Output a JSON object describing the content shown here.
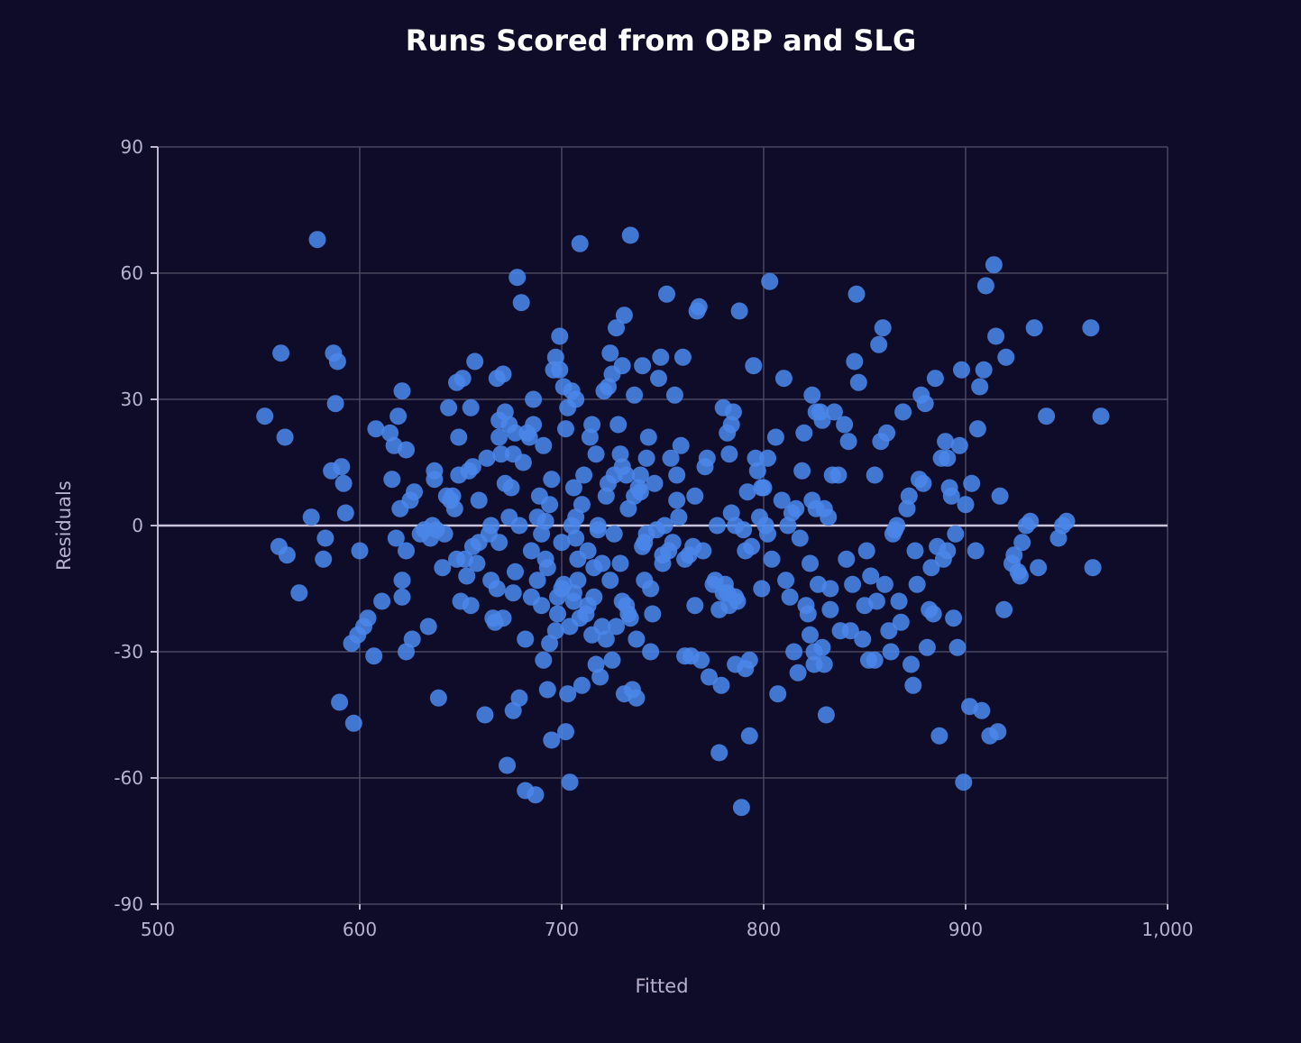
{
  "chart_data": {
    "type": "scatter",
    "title": "Runs Scored from OBP and SLG",
    "xlabel": "Fitted",
    "ylabel": "Residuals",
    "xlim": [
      500,
      1000
    ],
    "ylim": [
      -90,
      90
    ],
    "x_ticks": [
      500,
      600,
      700,
      800,
      900,
      1000
    ],
    "x_tick_labels": [
      "500",
      "600",
      "700",
      "800",
      "900",
      "1,000"
    ],
    "y_ticks": [
      -90,
      -60,
      -30,
      0,
      30,
      60,
      90
    ],
    "y_tick_labels": [
      "-90",
      "-60",
      "-30",
      "0",
      "30",
      "60",
      "90"
    ],
    "grid": true,
    "marker_color": "#4a86e8",
    "points": [
      [
        553,
        26
      ],
      [
        560,
        -5
      ],
      [
        561,
        41
      ],
      [
        563,
        21
      ],
      [
        564,
        -7
      ],
      [
        570,
        -16
      ],
      [
        576,
        2
      ],
      [
        579,
        68
      ],
      [
        582,
        -8
      ],
      [
        583,
        -3
      ],
      [
        586,
        13
      ],
      [
        587,
        41
      ],
      [
        588,
        29
      ],
      [
        589,
        39
      ],
      [
        590,
        -42
      ],
      [
        591,
        14
      ],
      [
        592,
        10
      ],
      [
        593,
        3
      ],
      [
        596,
        -28
      ],
      [
        597,
        -47
      ],
      [
        599,
        -26
      ],
      [
        600,
        -6
      ],
      [
        602,
        -24
      ],
      [
        604,
        -22
      ],
      [
        607,
        -31
      ],
      [
        608,
        23
      ],
      [
        611,
        -18
      ],
      [
        615,
        22
      ],
      [
        616,
        11
      ],
      [
        617,
        19
      ],
      [
        618,
        -3
      ],
      [
        619,
        26
      ],
      [
        620,
        4
      ],
      [
        621,
        32
      ],
      [
        621,
        -13
      ],
      [
        621,
        -17
      ],
      [
        623,
        18
      ],
      [
        623,
        -6
      ],
      [
        623,
        -30
      ],
      [
        625,
        6
      ],
      [
        626,
        -27
      ],
      [
        627,
        8
      ],
      [
        630,
        -2
      ],
      [
        632,
        -1
      ],
      [
        634,
        -24
      ],
      [
        635,
        -3
      ],
      [
        636,
        0
      ],
      [
        637,
        11
      ],
      [
        637,
        13
      ],
      [
        638,
        -1
      ],
      [
        639,
        -41
      ],
      [
        641,
        -10
      ],
      [
        642,
        -2
      ],
      [
        643,
        7
      ],
      [
        644,
        28
      ],
      [
        645,
        6
      ],
      [
        646,
        7
      ],
      [
        647,
        4
      ],
      [
        648,
        -8
      ],
      [
        648,
        34
      ],
      [
        649,
        12
      ],
      [
        649,
        21
      ],
      [
        650,
        -18
      ],
      [
        651,
        35
      ],
      [
        652,
        -8
      ],
      [
        653,
        -12
      ],
      [
        654,
        13
      ],
      [
        655,
        28
      ],
      [
        655,
        -19
      ],
      [
        656,
        14
      ],
      [
        656,
        -5
      ],
      [
        657,
        39
      ],
      [
        658,
        -9
      ],
      [
        659,
        -4
      ],
      [
        659,
        6
      ],
      [
        662,
        -45
      ],
      [
        663,
        16
      ],
      [
        664,
        -2
      ],
      [
        665,
        0
      ],
      [
        665,
        -13
      ],
      [
        666,
        -22
      ],
      [
        667,
        -23
      ],
      [
        668,
        -15
      ],
      [
        668,
        35
      ],
      [
        669,
        25
      ],
      [
        669,
        21
      ],
      [
        669,
        -4
      ],
      [
        670,
        17
      ],
      [
        671,
        36
      ],
      [
        671,
        -22
      ],
      [
        672,
        10
      ],
      [
        672,
        27
      ],
      [
        673,
        -57
      ],
      [
        674,
        2
      ],
      [
        674,
        24
      ],
      [
        675,
        9
      ],
      [
        676,
        -16
      ],
      [
        676,
        -44
      ],
      [
        676,
        17
      ],
      [
        677,
        -11
      ],
      [
        677,
        22
      ],
      [
        678,
        59
      ],
      [
        679,
        0
      ],
      [
        679,
        -41
      ],
      [
        680,
        53
      ],
      [
        681,
        15
      ],
      [
        682,
        -63
      ],
      [
        682,
        -27
      ],
      [
        683,
        22
      ],
      [
        684,
        21
      ],
      [
        685,
        -6
      ],
      [
        685,
        -17
      ],
      [
        686,
        24
      ],
      [
        686,
        30
      ],
      [
        687,
        -64
      ],
      [
        688,
        2
      ],
      [
        688,
        -13
      ],
      [
        689,
        7
      ],
      [
        690,
        -19
      ],
      [
        690,
        -2
      ],
      [
        691,
        -32
      ],
      [
        691,
        19
      ],
      [
        692,
        -8
      ],
      [
        692,
        1
      ],
      [
        693,
        -39
      ],
      [
        693,
        -10
      ],
      [
        694,
        5
      ],
      [
        694,
        -28
      ],
      [
        695,
        -51
      ],
      [
        695,
        11
      ],
      [
        696,
        37
      ],
      [
        697,
        -25
      ],
      [
        697,
        40
      ],
      [
        698,
        -21
      ],
      [
        698,
        -17
      ],
      [
        699,
        37
      ],
      [
        699,
        45
      ],
      [
        700,
        -15
      ],
      [
        700,
        -4
      ],
      [
        701,
        -14
      ],
      [
        701,
        33
      ],
      [
        702,
        -49
      ],
      [
        702,
        23
      ],
      [
        703,
        -40
      ],
      [
        703,
        28
      ],
      [
        704,
        -24
      ],
      [
        704,
        -61
      ],
      [
        705,
        0
      ],
      [
        705,
        32
      ],
      [
        706,
        9
      ],
      [
        706,
        -18
      ],
      [
        706,
        -16
      ],
      [
        707,
        2
      ],
      [
        707,
        -3
      ],
      [
        707,
        30
      ],
      [
        708,
        -13
      ],
      [
        708,
        -8
      ],
      [
        709,
        67
      ],
      [
        709,
        -22
      ],
      [
        710,
        -38
      ],
      [
        710,
        5
      ],
      [
        711,
        12
      ],
      [
        712,
        -21
      ],
      [
        713,
        -6
      ],
      [
        713,
        -19
      ],
      [
        714,
        21
      ],
      [
        715,
        24
      ],
      [
        715,
        -26
      ],
      [
        716,
        -10
      ],
      [
        716,
        -17
      ],
      [
        717,
        17
      ],
      [
        717,
        -33
      ],
      [
        718,
        0
      ],
      [
        718,
        -1
      ],
      [
        719,
        -36
      ],
      [
        720,
        -9
      ],
      [
        720,
        -24
      ],
      [
        721,
        32
      ],
      [
        722,
        -27
      ],
      [
        722,
        7
      ],
      [
        723,
        33
      ],
      [
        723,
        10
      ],
      [
        724,
        41
      ],
      [
        724,
        -13
      ],
      [
        725,
        -32
      ],
      [
        725,
        36
      ],
      [
        726,
        -2
      ],
      [
        726,
        12
      ],
      [
        727,
        -24
      ],
      [
        727,
        47
      ],
      [
        728,
        24
      ],
      [
        729,
        17
      ],
      [
        729,
        -9
      ],
      [
        730,
        -18
      ],
      [
        730,
        38
      ],
      [
        730,
        14
      ],
      [
        731,
        50
      ],
      [
        731,
        -40
      ],
      [
        732,
        -19
      ],
      [
        732,
        12
      ],
      [
        733,
        4
      ],
      [
        733,
        -21
      ],
      [
        734,
        69
      ],
      [
        734,
        -22
      ],
      [
        735,
        -39
      ],
      [
        736,
        7
      ],
      [
        736,
        31
      ],
      [
        737,
        -27
      ],
      [
        737,
        -41
      ],
      [
        738,
        9
      ],
      [
        739,
        12
      ],
      [
        739,
        8
      ],
      [
        740,
        38
      ],
      [
        740,
        -5
      ],
      [
        741,
        -4
      ],
      [
        741,
        -13
      ],
      [
        742,
        16
      ],
      [
        742,
        -2
      ],
      [
        743,
        21
      ],
      [
        744,
        -30
      ],
      [
        744,
        -15
      ],
      [
        745,
        -21
      ],
      [
        746,
        10
      ],
      [
        747,
        -1
      ],
      [
        748,
        35
      ],
      [
        749,
        40
      ],
      [
        750,
        -9
      ],
      [
        750,
        -7
      ],
      [
        751,
        0
      ],
      [
        752,
        55
      ],
      [
        753,
        -6
      ],
      [
        754,
        16
      ],
      [
        755,
        -4
      ],
      [
        756,
        31
      ],
      [
        757,
        12
      ],
      [
        757,
        6
      ],
      [
        758,
        2
      ],
      [
        759,
        19
      ],
      [
        760,
        40
      ],
      [
        761,
        -31
      ],
      [
        761,
        -8
      ],
      [
        763,
        -7
      ],
      [
        764,
        -31
      ],
      [
        765,
        -5
      ],
      [
        766,
        -19
      ],
      [
        766,
        7
      ],
      [
        767,
        51
      ],
      [
        768,
        52
      ],
      [
        769,
        -32
      ],
      [
        770,
        -6
      ],
      [
        771,
        14
      ],
      [
        772,
        16
      ],
      [
        773,
        -36
      ],
      [
        775,
        -14
      ],
      [
        776,
        -13
      ],
      [
        777,
        0
      ],
      [
        778,
        -54
      ],
      [
        778,
        -20
      ],
      [
        779,
        -38
      ],
      [
        780,
        28
      ],
      [
        780,
        -16
      ],
      [
        781,
        -14
      ],
      [
        782,
        22
      ],
      [
        782,
        -16
      ],
      [
        783,
        17
      ],
      [
        783,
        -19
      ],
      [
        784,
        24
      ],
      [
        784,
        3
      ],
      [
        785,
        27
      ],
      [
        786,
        -33
      ],
      [
        786,
        -17
      ],
      [
        786,
        0
      ],
      [
        787,
        -18
      ],
      [
        788,
        51
      ],
      [
        789,
        -67
      ],
      [
        790,
        -1
      ],
      [
        791,
        -6
      ],
      [
        791,
        -34
      ],
      [
        792,
        8
      ],
      [
        793,
        -32
      ],
      [
        793,
        -50
      ],
      [
        794,
        -5
      ],
      [
        795,
        38
      ],
      [
        796,
        16
      ],
      [
        797,
        13
      ],
      [
        798,
        2
      ],
      [
        799,
        9
      ],
      [
        799,
        -15
      ],
      [
        800,
        9
      ],
      [
        801,
        0
      ],
      [
        802,
        -2
      ],
      [
        802,
        16
      ],
      [
        803,
        58
      ],
      [
        804,
        -8
      ],
      [
        806,
        21
      ],
      [
        807,
        -40
      ],
      [
        809,
        6
      ],
      [
        810,
        35
      ],
      [
        811,
        -13
      ],
      [
        812,
        0
      ],
      [
        813,
        -17
      ],
      [
        814,
        3
      ],
      [
        815,
        -30
      ],
      [
        816,
        4
      ],
      [
        817,
        -35
      ],
      [
        818,
        -3
      ],
      [
        819,
        13
      ],
      [
        820,
        22
      ],
      [
        821,
        -19
      ],
      [
        822,
        -21
      ],
      [
        823,
        -9
      ],
      [
        823,
        -26
      ],
      [
        824,
        6
      ],
      [
        824,
        31
      ],
      [
        825,
        -30
      ],
      [
        825,
        -33
      ],
      [
        826,
        27
      ],
      [
        826,
        4
      ],
      [
        827,
        -14
      ],
      [
        828,
        27
      ],
      [
        829,
        25
      ],
      [
        829,
        -29
      ],
      [
        830,
        -33
      ],
      [
        830,
        4
      ],
      [
        831,
        -45
      ],
      [
        832,
        2
      ],
      [
        833,
        -20
      ],
      [
        833,
        -15
      ],
      [
        834,
        12
      ],
      [
        835,
        27
      ],
      [
        837,
        12
      ],
      [
        838,
        -25
      ],
      [
        840,
        24
      ],
      [
        841,
        -8
      ],
      [
        842,
        20
      ],
      [
        843,
        -25
      ],
      [
        844,
        -14
      ],
      [
        845,
        39
      ],
      [
        846,
        55
      ],
      [
        847,
        34
      ],
      [
        849,
        -27
      ],
      [
        850,
        -19
      ],
      [
        851,
        -6
      ],
      [
        852,
        -32
      ],
      [
        853,
        -12
      ],
      [
        855,
        12
      ],
      [
        855,
        -32
      ],
      [
        856,
        -18
      ],
      [
        857,
        43
      ],
      [
        858,
        20
      ],
      [
        859,
        47
      ],
      [
        860,
        -14
      ],
      [
        861,
        22
      ],
      [
        862,
        -25
      ],
      [
        863,
        -30
      ],
      [
        864,
        -2
      ],
      [
        865,
        -1
      ],
      [
        866,
        0
      ],
      [
        867,
        -18
      ],
      [
        868,
        -23
      ],
      [
        869,
        27
      ],
      [
        871,
        4
      ],
      [
        872,
        7
      ],
      [
        873,
        -33
      ],
      [
        874,
        -38
      ],
      [
        875,
        -6
      ],
      [
        876,
        -14
      ],
      [
        877,
        11
      ],
      [
        878,
        31
      ],
      [
        879,
        10
      ],
      [
        880,
        29
      ],
      [
        881,
        -29
      ],
      [
        882,
        -20
      ],
      [
        883,
        -10
      ],
      [
        884,
        -21
      ],
      [
        885,
        35
      ],
      [
        886,
        -5
      ],
      [
        887,
        -50
      ],
      [
        888,
        16
      ],
      [
        889,
        -8
      ],
      [
        890,
        20
      ],
      [
        891,
        16
      ],
      [
        891,
        -6
      ],
      [
        892,
        9
      ],
      [
        893,
        7
      ],
      [
        894,
        -22
      ],
      [
        895,
        -2
      ],
      [
        896,
        -29
      ],
      [
        897,
        19
      ],
      [
        898,
        37
      ],
      [
        899,
        -61
      ],
      [
        900,
        5
      ],
      [
        902,
        -43
      ],
      [
        903,
        10
      ],
      [
        905,
        -6
      ],
      [
        906,
        23
      ],
      [
        907,
        33
      ],
      [
        908,
        -44
      ],
      [
        909,
        37
      ],
      [
        910,
        57
      ],
      [
        912,
        -50
      ],
      [
        914,
        62
      ],
      [
        915,
        45
      ],
      [
        916,
        -49
      ],
      [
        917,
        7
      ],
      [
        919,
        -20
      ],
      [
        920,
        40
      ],
      [
        923,
        -9
      ],
      [
        924,
        -7
      ],
      [
        926,
        -11
      ],
      [
        927,
        -12
      ],
      [
        928,
        -4
      ],
      [
        930,
        0
      ],
      [
        932,
        1
      ],
      [
        934,
        47
      ],
      [
        936,
        -10
      ],
      [
        940,
        26
      ],
      [
        946,
        -3
      ],
      [
        948,
        0
      ],
      [
        950,
        1
      ],
      [
        962,
        47
      ],
      [
        963,
        -10
      ],
      [
        967,
        26
      ]
    ]
  }
}
